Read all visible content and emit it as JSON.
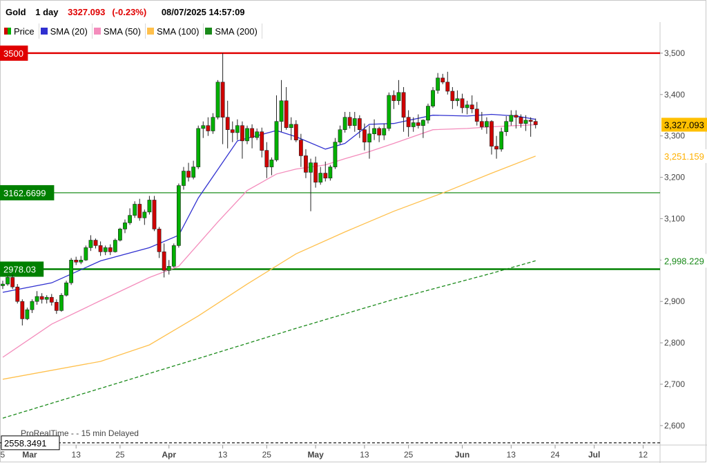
{
  "header": {
    "symbol": "Gold",
    "period": "1 day",
    "price": "3327.093",
    "change": "(-0.23%)",
    "datetime": "08/07/2025 14:57:09"
  },
  "legend": [
    {
      "label": "Price",
      "color": "#00b000"
    },
    {
      "label": "SMA (20)",
      "color": "#3030d0"
    },
    {
      "label": "SMA (50)",
      "color": "#f48cbc"
    },
    {
      "label": "SMA (100)",
      "color": "#ffc04c"
    },
    {
      "label": "SMA (200)",
      "color": "#1a8a1a"
    }
  ],
  "source_note": "ProRealTime -    - 15 min Delayed",
  "right_labels": {
    "last_price": "3,327.093",
    "sma100_value": "3,251.159",
    "sma200_value": "2,998.229"
  },
  "colors": {
    "up": "#00b000",
    "down": "#d00000",
    "resistance": "#e00000",
    "support": "#008000",
    "axis_text": "#444444"
  },
  "chart_data": {
    "type": "candlestick",
    "title": "",
    "xlabel": "",
    "ylabel": "",
    "ylim": [
      2553,
      3575
    ],
    "yticks": [
      2600,
      2700,
      2800,
      2900,
      3000,
      3100,
      3200,
      3300,
      3400,
      3500
    ],
    "ytick_labels": [
      "2,600",
      "2,700",
      "2,800",
      "2,900",
      "3,000",
      "3,100",
      "3,200",
      "3,300",
      "3,400",
      "3,500"
    ],
    "xtick_labels": [
      "25",
      "Mar",
      "13",
      "25",
      "Apr",
      "13",
      "25",
      "May",
      "13",
      "25",
      "Jun",
      "13",
      "24",
      "Jul",
      "12"
    ],
    "xtick_slots": [
      -0.5,
      5.5,
      15,
      24,
      34,
      45,
      54,
      64,
      74,
      83,
      94,
      104,
      113,
      121,
      131
    ],
    "horizontal_levels": [
      {
        "value": 3500,
        "label": "3500",
        "color": "#e00000"
      },
      {
        "value": 3162.6699,
        "label": "3162.6699",
        "color": "#008000"
      },
      {
        "value": 2978.03,
        "label": "2978.03",
        "color": "#008000"
      },
      {
        "value": 2558.3491,
        "label": "2558.3491",
        "color": "#000000",
        "dashed": true
      }
    ],
    "candles": [
      [
        2938,
        2950,
        2930,
        2942
      ],
      [
        2942,
        2962,
        2938,
        2958
      ],
      [
        2958,
        2965,
        2930,
        2935
      ],
      [
        2935,
        2942,
        2895,
        2900
      ],
      [
        2900,
        2905,
        2842,
        2858
      ],
      [
        2858,
        2885,
        2855,
        2880
      ],
      [
        2880,
        2905,
        2872,
        2900
      ],
      [
        2900,
        2925,
        2892,
        2912
      ],
      [
        2912,
        2920,
        2895,
        2905
      ],
      [
        2905,
        2915,
        2895,
        2910
      ],
      [
        2910,
        2918,
        2890,
        2898
      ],
      [
        2898,
        2905,
        2870,
        2878
      ],
      [
        2878,
        2920,
        2875,
        2915
      ],
      [
        2915,
        2950,
        2912,
        2945
      ],
      [
        2945,
        3005,
        2940,
        3000
      ],
      [
        3000,
        3008,
        2988,
        2995
      ],
      [
        2995,
        3010,
        2990,
        3000
      ],
      [
        3000,
        3035,
        2998,
        3030
      ],
      [
        3030,
        3060,
        3022,
        3048
      ],
      [
        3048,
        3052,
        3028,
        3035
      ],
      [
        3035,
        3045,
        3010,
        3020
      ],
      [
        3020,
        3035,
        3012,
        3030
      ],
      [
        3030,
        3038,
        3012,
        3020
      ],
      [
        3020,
        3052,
        3018,
        3048
      ],
      [
        3048,
        3078,
        3045,
        3075
      ],
      [
        3075,
        3098,
        3065,
        3090
      ],
      [
        3090,
        3125,
        3085,
        3108
      ],
      [
        3108,
        3142,
        3102,
        3135
      ],
      [
        3135,
        3148,
        3095,
        3102
      ],
      [
        3102,
        3122,
        3085,
        3116
      ],
      [
        3116,
        3155,
        3110,
        3145
      ],
      [
        3145,
        3155,
        3070,
        3075
      ],
      [
        3075,
        3080,
        3005,
        3020
      ],
      [
        3020,
        3040,
        2958,
        2975
      ],
      [
        2975,
        3000,
        2965,
        2985
      ],
      [
        2985,
        3040,
        2982,
        3035
      ],
      [
        3035,
        3185,
        3030,
        3180
      ],
      [
        3180,
        3225,
        3170,
        3215
      ],
      [
        3215,
        3235,
        3190,
        3200
      ],
      [
        3200,
        3240,
        3195,
        3225
      ],
      [
        3225,
        3325,
        3220,
        3318
      ],
      [
        3318,
        3335,
        3295,
        3325
      ],
      [
        3325,
        3345,
        3300,
        3312
      ],
      [
        3312,
        3355,
        3305,
        3345
      ],
      [
        3345,
        3435,
        3340,
        3430
      ],
      [
        3430,
        3500,
        3280,
        3345
      ],
      [
        3345,
        3385,
        3270,
        3315
      ],
      [
        3315,
        3335,
        3285,
        3308
      ],
      [
        3308,
        3340,
        3290,
        3325
      ],
      [
        3325,
        3335,
        3245,
        3288
      ],
      [
        3288,
        3325,
        3280,
        3318
      ],
      [
        3318,
        3328,
        3270,
        3296
      ],
      [
        3296,
        3318,
        3290,
        3310
      ],
      [
        3310,
        3320,
        3248,
        3265
      ],
      [
        3265,
        3285,
        3198,
        3225
      ],
      [
        3225,
        3248,
        3205,
        3242
      ],
      [
        3242,
        3398,
        3238,
        3335
      ],
      [
        3335,
        3435,
        3310,
        3385
      ],
      [
        3385,
        3418,
        3315,
        3320
      ],
      [
        3320,
        3345,
        3290,
        3328
      ],
      [
        3328,
        3338,
        3285,
        3290
      ],
      [
        3290,
        3305,
        3225,
        3252
      ],
      [
        3252,
        3268,
        3198,
        3212
      ],
      [
        3212,
        3245,
        3118,
        3235
      ],
      [
        3235,
        3250,
        3175,
        3188
      ],
      [
        3188,
        3225,
        3182,
        3210
      ],
      [
        3210,
        3238,
        3190,
        3198
      ],
      [
        3198,
        3230,
        3192,
        3225
      ],
      [
        3225,
        3295,
        3220,
        3285
      ],
      [
        3285,
        3325,
        3280,
        3315
      ],
      [
        3315,
        3358,
        3308,
        3345
      ],
      [
        3345,
        3358,
        3318,
        3325
      ],
      [
        3325,
        3358,
        3310,
        3342
      ],
      [
        3342,
        3350,
        3295,
        3315
      ],
      [
        3315,
        3330,
        3265,
        3285
      ],
      [
        3285,
        3325,
        3245,
        3305
      ],
      [
        3305,
        3340,
        3290,
        3318
      ],
      [
        3318,
        3322,
        3285,
        3302
      ],
      [
        3302,
        3330,
        3290,
        3318
      ],
      [
        3318,
        3405,
        3312,
        3398
      ],
      [
        3398,
        3410,
        3365,
        3385
      ],
      [
        3385,
        3435,
        3375,
        3405
      ],
      [
        3405,
        3418,
        3310,
        3345
      ],
      [
        3345,
        3362,
        3298,
        3322
      ],
      [
        3322,
        3345,
        3310,
        3332
      ],
      [
        3332,
        3352,
        3318,
        3325
      ],
      [
        3325,
        3340,
        3295,
        3338
      ],
      [
        3338,
        3378,
        3330,
        3372
      ],
      [
        3372,
        3418,
        3368,
        3410
      ],
      [
        3410,
        3452,
        3402,
        3440
      ],
      [
        3440,
        3450,
        3425,
        3430
      ],
      [
        3430,
        3455,
        3400,
        3408
      ],
      [
        3408,
        3418,
        3365,
        3385
      ],
      [
        3385,
        3410,
        3372,
        3390
      ],
      [
        3390,
        3402,
        3355,
        3368
      ],
      [
        3368,
        3385,
        3352,
        3375
      ],
      [
        3375,
        3398,
        3355,
        3365
      ],
      [
        3365,
        3382,
        3325,
        3335
      ],
      [
        3335,
        3358,
        3315,
        3322
      ],
      [
        3322,
        3345,
        3305,
        3335
      ],
      [
        3335,
        3338,
        3255,
        3275
      ],
      [
        3275,
        3300,
        3245,
        3268
      ],
      [
        3268,
        3320,
        3262,
        3310
      ],
      [
        3310,
        3348,
        3300,
        3335
      ],
      [
        3335,
        3362,
        3325,
        3350
      ],
      [
        3350,
        3362,
        3318,
        3345
      ],
      [
        3345,
        3352,
        3320,
        3330
      ],
      [
        3330,
        3350,
        3312,
        3338
      ],
      [
        3338,
        3345,
        3298,
        3335
      ],
      [
        3335,
        3342,
        3318,
        3327
      ]
    ],
    "series": [
      {
        "name": "SMA (20)",
        "color": "#3030d0",
        "slots": [
          0,
          10,
          20,
          30,
          36,
          40,
          48,
          56,
          60,
          66,
          70,
          75,
          80,
          88,
          95,
          100,
          105,
          109
        ],
        "values": [
          2922,
          2945,
          2998,
          3030,
          3060,
          3150,
          3288,
          3313,
          3298,
          3268,
          3282,
          3328,
          3330,
          3350,
          3348,
          3352,
          3348,
          3340
        ]
      },
      {
        "name": "SMA (50)",
        "color": "#f48cbc",
        "slots": [
          0,
          10,
          20,
          30,
          36,
          44,
          50,
          56,
          60,
          66,
          70,
          75,
          80,
          88,
          95,
          100,
          105,
          109
        ],
        "values": [
          2765,
          2845,
          2902,
          2958,
          2985,
          3092,
          3168,
          3208,
          3220,
          3230,
          3245,
          3262,
          3282,
          3315,
          3318,
          3322,
          3325,
          3327
        ]
      },
      {
        "name": "SMA (100)",
        "color": "#ffc04c",
        "slots": [
          0,
          20,
          30,
          40,
          50,
          60,
          70,
          80,
          90,
          100,
          109
        ],
        "values": [
          2712,
          2755,
          2795,
          2865,
          2942,
          3015,
          3068,
          3118,
          3162,
          3210,
          3251.159
        ]
      },
      {
        "name": "SMA (200)",
        "color": "#1a8a1a",
        "dashed": true,
        "slots": [
          0,
          20,
          40,
          60,
          80,
          100,
          109
        ],
        "values": [
          2618,
          2690,
          2762,
          2835,
          2905,
          2968,
          2998.229
        ]
      }
    ]
  }
}
